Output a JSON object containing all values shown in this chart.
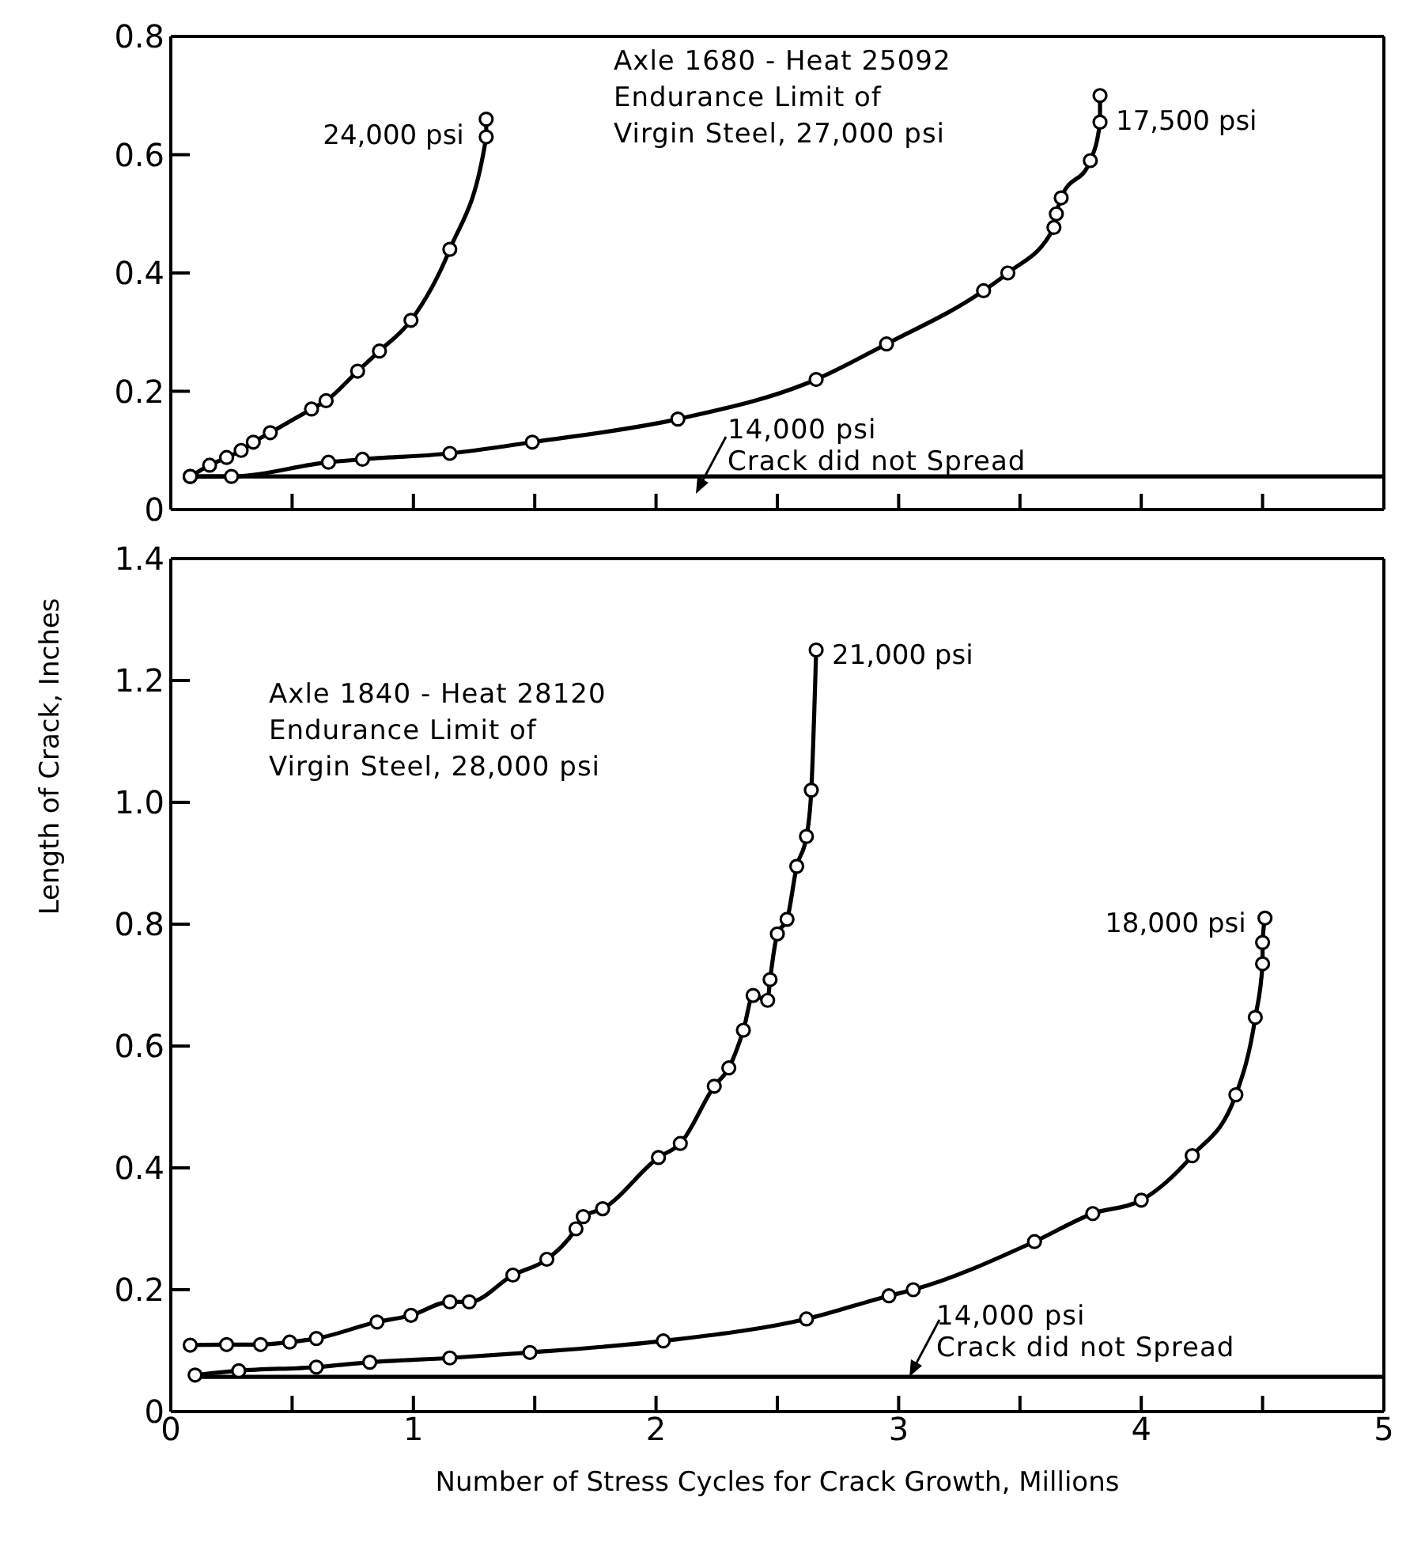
{
  "chart_data": [
    {
      "type": "line",
      "xlim": [
        0,
        5
      ],
      "xticks": [
        {
          "value": 0,
          "label": null
        },
        {
          "value": 0.5,
          "label": null
        },
        {
          "value": 1,
          "label": null
        },
        {
          "value": 1.5,
          "label": null
        },
        {
          "value": 2,
          "label": null
        },
        {
          "value": 2.5,
          "label": null
        },
        {
          "value": 3,
          "label": null
        },
        {
          "value": 3.5,
          "label": null
        },
        {
          "value": 4,
          "label": null
        },
        {
          "value": 4.5,
          "label": null
        },
        {
          "value": 5,
          "label": null
        }
      ],
      "ylim": [
        0,
        0.8
      ],
      "yticks": [
        0,
        0.2,
        0.4,
        0.6,
        0.8
      ],
      "tick_labels": "y",
      "marker": "circle",
      "legend": false,
      "grid": false,
      "series": [
        {
          "name": "24,000 psi",
          "color": "#000000",
          "x": [
            0.08,
            0.16,
            0.23,
            0.29,
            0.34,
            0.41,
            0.58,
            0.64,
            0.77,
            0.86,
            0.99,
            1.15,
            1.3,
            1.3
          ],
          "values": [
            0.056,
            0.075,
            0.088,
            0.1,
            0.114,
            0.13,
            0.17,
            0.184,
            0.234,
            0.268,
            0.32,
            0.44,
            0.63,
            0.66
          ]
        },
        {
          "name": "17,500 psi",
          "color": "#000000",
          "x": [
            0.08,
            0.25,
            0.65,
            0.79,
            1.15,
            1.49,
            2.09,
            2.66,
            2.95,
            3.35,
            3.45,
            3.64,
            3.65,
            3.67,
            3.79,
            3.83,
            3.83
          ],
          "values": [
            0.056,
            0.056,
            0.08,
            0.085,
            0.095,
            0.114,
            0.153,
            0.22,
            0.28,
            0.37,
            0.4,
            0.477,
            0.5,
            0.527,
            0.59,
            0.655,
            0.7
          ]
        },
        {
          "name": "14,000 psi",
          "color": "#000000",
          "marker": "none",
          "x": [
            0.08,
            5
          ],
          "values": [
            0.056,
            0.056
          ]
        }
      ],
      "annotations": [
        "Axle 1680 - Heat 25092\nEndurance Limit of\nVirgin Steel, 27,000 psi",
        "Crack did not Spread"
      ]
    },
    {
      "type": "line",
      "xlim": [
        0,
        5
      ],
      "xticks": [
        {
          "value": 0,
          "label": "0"
        },
        {
          "value": 0.5,
          "label": null
        },
        {
          "value": 1,
          "label": "1"
        },
        {
          "value": 1.5,
          "label": null
        },
        {
          "value": 2,
          "label": "2"
        },
        {
          "value": 2.5,
          "label": null
        },
        {
          "value": 3,
          "label": "3"
        },
        {
          "value": 3.5,
          "label": null
        },
        {
          "value": 4,
          "label": "4"
        },
        {
          "value": 4.5,
          "label": null
        },
        {
          "value": 5,
          "label": "5"
        }
      ],
      "ylim": [
        0,
        1.4
      ],
      "yticks": [
        0,
        0.2,
        0.4,
        0.6,
        0.8,
        {
          "value": 1,
          "label": "1.0"
        },
        1.2,
        1.4
      ],
      "marker": "circle",
      "legend": false,
      "grid": false,
      "xlabel": "Number of Stress Cycles for Crack Growth, Millions",
      "ylabel": "Length of Crack, Inches",
      "series": [
        {
          "name": "21,000 psi",
          "color": "#000000",
          "x": [
            0.08,
            0.23,
            0.37,
            0.49,
            0.6,
            0.85,
            0.99,
            1.15,
            1.23,
            1.41,
            1.55,
            1.67,
            1.7,
            1.78,
            2.01,
            2.1,
            2.24,
            2.3,
            2.36,
            2.4,
            2.46,
            2.47,
            2.5,
            2.54,
            2.58,
            2.62,
            2.64,
            2.66
          ],
          "values": [
            0.109,
            0.11,
            0.11,
            0.114,
            0.12,
            0.147,
            0.158,
            0.18,
            0.18,
            0.224,
            0.25,
            0.3,
            0.32,
            0.333,
            0.417,
            0.44,
            0.534,
            0.564,
            0.626,
            0.683,
            0.675,
            0.709,
            0.784,
            0.808,
            0.895,
            0.944,
            1.02,
            1.25
          ]
        },
        {
          "name": "18,000 psi",
          "color": "#000000",
          "x": [
            0.1,
            0.28,
            0.6,
            0.82,
            1.15,
            1.48,
            2.03,
            2.62,
            2.96,
            3.06,
            3.56,
            3.8,
            4.0,
            4.21,
            4.39,
            4.47,
            4.5,
            4.5,
            4.51
          ],
          "values": [
            0.06,
            0.067,
            0.073,
            0.081,
            0.088,
            0.097,
            0.116,
            0.152,
            0.19,
            0.2,
            0.279,
            0.325,
            0.347,
            0.42,
            0.52,
            0.647,
            0.735,
            0.77,
            0.81
          ]
        },
        {
          "name": "14,000 psi",
          "color": "#000000",
          "marker": "none",
          "x": [
            0.08,
            5
          ],
          "values": [
            0.057,
            0.057
          ]
        }
      ],
      "annotations": [
        "Axle 1840 - Heat 28120\nEndurance Limit of\nVirgin Steel, 28,000 psi",
        "Crack did not Spread"
      ]
    }
  ]
}
